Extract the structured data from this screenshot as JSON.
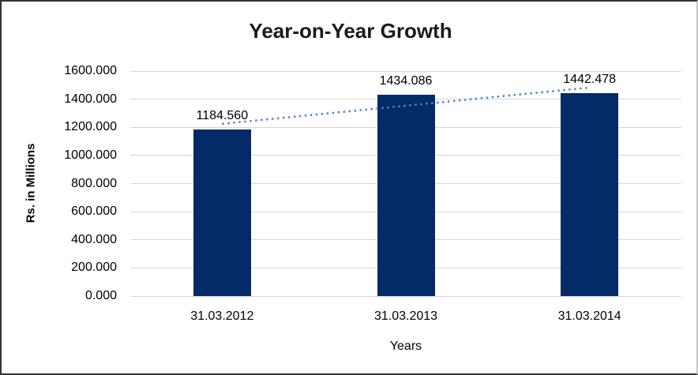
{
  "chart_data": {
    "type": "bar",
    "title": "Year-on-Year Growth",
    "xlabel": "Years",
    "ylabel": "Rs. in Millions",
    "categories": [
      "31.03.2012",
      "31.03.2013",
      "31.03.2014"
    ],
    "values": [
      1184.56,
      1434.086,
      1442.478
    ],
    "value_labels": [
      "1184.560",
      "1434.086",
      "1442.478"
    ],
    "yticks": [
      "0.000",
      "200.000",
      "400.000",
      "600.000",
      "800.000",
      "1000.000",
      "1200.000",
      "1400.000",
      "1600.000"
    ],
    "ylim": [
      0,
      1600
    ],
    "grid": "horizontal",
    "legend": "none",
    "trendline": {
      "type": "linear",
      "style": "dotted",
      "color": "#4f86c9"
    },
    "colors": {
      "bar": "#042a68",
      "gridline": "#d6d6d6",
      "text": "#000000"
    }
  }
}
